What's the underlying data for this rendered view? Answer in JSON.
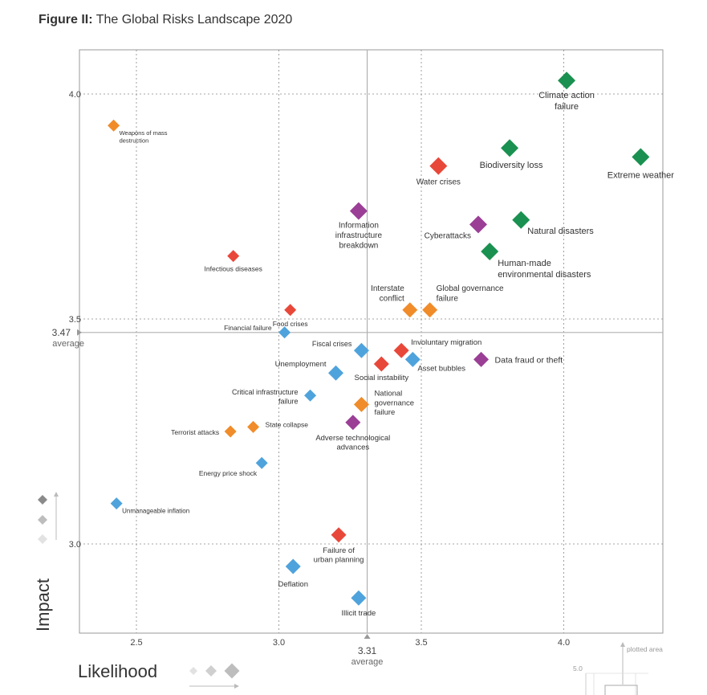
{
  "figure": {
    "prefix": "Figure II:",
    "title": "The Global Risks Landscape 2020"
  },
  "chart_data": {
    "type": "scatter",
    "xlabel": "Likelihood",
    "ylabel": "Impact",
    "xlim": [
      2.3,
      4.35
    ],
    "ylim": [
      2.8,
      4.1
    ],
    "x_ticks": [
      "2.5",
      "3.0",
      "3.5",
      "4.0"
    ],
    "y_ticks": [
      "3.0",
      "3.5",
      "4.0"
    ],
    "avg_x": {
      "value": "3.31",
      "label": "average"
    },
    "avg_y": {
      "value": "3.47",
      "label": "average"
    },
    "grid": true,
    "inset": {
      "value_label": "5.0",
      "label": "plotted area"
    },
    "colors": {
      "economic": "#4fa3dc",
      "environmental": "#1a9150",
      "geopolitical": "#f08c2a",
      "societal": "#e8483a",
      "technological": "#9b3f96"
    },
    "points": [
      {
        "label": "Climate action failure",
        "x": 4.01,
        "y": 4.03,
        "cat": "environmental",
        "size": "large"
      },
      {
        "label": "Extreme weather",
        "x": 4.27,
        "y": 3.86,
        "cat": "environmental",
        "size": "large"
      },
      {
        "label": "Biodiversity loss",
        "x": 3.81,
        "y": 3.88,
        "cat": "environmental",
        "size": "large"
      },
      {
        "label": "Water crises",
        "x": 3.56,
        "y": 3.84,
        "cat": "societal",
        "size": "large"
      },
      {
        "label": "Natural disasters",
        "x": 3.85,
        "y": 3.72,
        "cat": "environmental",
        "size": "large"
      },
      {
        "label": "Cyberattacks",
        "x": 3.7,
        "y": 3.71,
        "cat": "technological",
        "size": "large"
      },
      {
        "label": "Human-made environmental disasters",
        "x": 3.74,
        "y": 3.65,
        "cat": "environmental",
        "size": "large"
      },
      {
        "label": "Information infrastructure breakdown",
        "x": 3.28,
        "y": 3.74,
        "cat": "technological",
        "size": "large"
      },
      {
        "label": "Weapons of mass destruction",
        "x": 2.42,
        "y": 3.93,
        "cat": "geopolitical",
        "size": "small"
      },
      {
        "label": "Infectious diseases",
        "x": 2.84,
        "y": 3.64,
        "cat": "societal",
        "size": "small"
      },
      {
        "label": "Food crises",
        "x": 3.04,
        "y": 3.52,
        "cat": "societal",
        "size": "small"
      },
      {
        "label": "Interstate conflict",
        "x": 3.46,
        "y": 3.52,
        "cat": "geopolitical",
        "size": "medium"
      },
      {
        "label": "Global governance failure",
        "x": 3.53,
        "y": 3.52,
        "cat": "geopolitical",
        "size": "medium"
      },
      {
        "label": "Financial failure",
        "x": 3.02,
        "y": 3.47,
        "cat": "economic",
        "size": "small"
      },
      {
        "label": "Fiscal crises",
        "x": 3.29,
        "y": 3.43,
        "cat": "economic",
        "size": "medium"
      },
      {
        "label": "Involuntary migration",
        "x": 3.43,
        "y": 3.43,
        "cat": "societal",
        "size": "medium"
      },
      {
        "label": "Social instability",
        "x": 3.36,
        "y": 3.4,
        "cat": "societal",
        "size": "medium"
      },
      {
        "label": "Asset bubbles",
        "x": 3.47,
        "y": 3.41,
        "cat": "economic",
        "size": "medium"
      },
      {
        "label": "Data fraud or theft",
        "x": 3.71,
        "y": 3.41,
        "cat": "technological",
        "size": "medium"
      },
      {
        "label": "Unemployment",
        "x": 3.2,
        "y": 3.38,
        "cat": "economic",
        "size": "medium"
      },
      {
        "label": "Critical infrastructure failure",
        "x": 3.11,
        "y": 3.33,
        "cat": "economic",
        "size": "small"
      },
      {
        "label": "National governance failure",
        "x": 3.29,
        "y": 3.31,
        "cat": "geopolitical",
        "size": "medium"
      },
      {
        "label": "Adverse technological advances",
        "x": 3.26,
        "y": 3.27,
        "cat": "technological",
        "size": "medium"
      },
      {
        "label": "State collapse",
        "x": 2.91,
        "y": 3.26,
        "cat": "geopolitical",
        "size": "small"
      },
      {
        "label": "Terrorist attacks",
        "x": 2.83,
        "y": 3.25,
        "cat": "geopolitical",
        "size": "small"
      },
      {
        "label": "Energy price shock",
        "x": 2.94,
        "y": 3.18,
        "cat": "economic",
        "size": "small"
      },
      {
        "label": "Unmanageable inflation",
        "x": 2.43,
        "y": 3.09,
        "cat": "economic",
        "size": "small"
      },
      {
        "label": "Failure of urban planning",
        "x": 3.21,
        "y": 3.02,
        "cat": "societal",
        "size": "medium"
      },
      {
        "label": "Deflation",
        "x": 3.05,
        "y": 2.95,
        "cat": "economic",
        "size": "medium"
      },
      {
        "label": "Illicit trade",
        "x": 3.28,
        "y": 2.88,
        "cat": "economic",
        "size": "medium"
      }
    ]
  }
}
